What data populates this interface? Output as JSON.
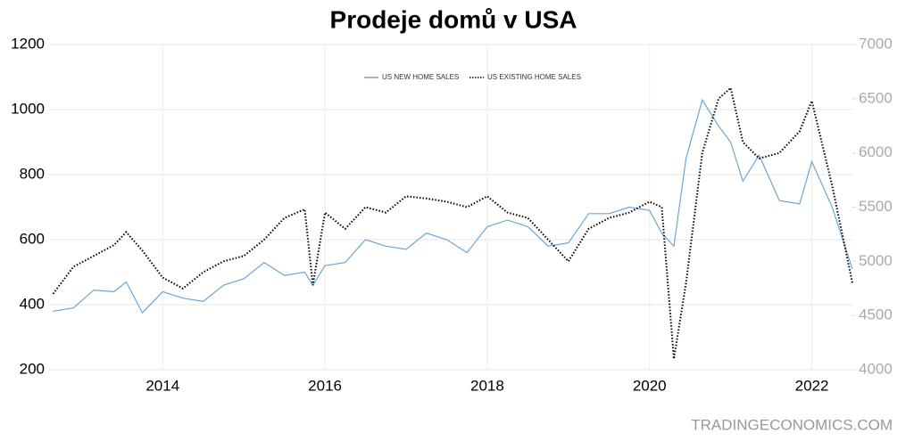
{
  "chart_data": {
    "type": "line",
    "title": "Prodeje domů v USA",
    "source": "TRADINGECONOMICS.COM",
    "x": [
      2012.65,
      2012.9,
      2013.15,
      2013.4,
      2013.55,
      2013.75,
      2014.0,
      2014.25,
      2014.5,
      2014.75,
      2015.0,
      2015.25,
      2015.5,
      2015.75,
      2015.85,
      2016.0,
      2016.25,
      2016.5,
      2016.75,
      2017.0,
      2017.25,
      2017.5,
      2017.75,
      2018.0,
      2018.25,
      2018.5,
      2018.75,
      2019.0,
      2019.25,
      2019.5,
      2019.75,
      2020.0,
      2020.15,
      2020.3,
      2020.45,
      2020.65,
      2020.85,
      2021.0,
      2021.15,
      2021.35,
      2021.6,
      2021.85,
      2022.0,
      2022.25,
      2022.5
    ],
    "series": [
      {
        "name": "US NEW HOME SALES",
        "color": "#6aa6d6",
        "axis": "y",
        "values": [
          380,
          390,
          445,
          440,
          470,
          375,
          440,
          420,
          410,
          460,
          480,
          530,
          490,
          500,
          460,
          520,
          530,
          600,
          580,
          570,
          620,
          600,
          560,
          640,
          660,
          640,
          580,
          590,
          680,
          680,
          700,
          690,
          620,
          580,
          850,
          1030,
          950,
          900,
          780,
          860,
          720,
          710,
          840,
          700,
          510
        ]
      },
      {
        "name": "US EXISTING HOME SALES",
        "color": "#000000",
        "axis": "y2",
        "values": [
          4700,
          4950,
          5050,
          5150,
          5270,
          5100,
          4850,
          4750,
          4900,
          5000,
          5050,
          5200,
          5400,
          5480,
          4780,
          5450,
          5300,
          5500,
          5450,
          5600,
          5580,
          5550,
          5500,
          5600,
          5450,
          5400,
          5200,
          5000,
          5300,
          5400,
          5450,
          5550,
          5500,
          4100,
          4800,
          6000,
          6500,
          6600,
          6100,
          5950,
          6000,
          6200,
          6480,
          5700,
          4800
        ]
      }
    ],
    "xlim": [
      2012.6,
      2022.5
    ],
    "xticks": [
      2014,
      2016,
      2018,
      2020,
      2022
    ],
    "ylim": [
      200,
      1200
    ],
    "yticks": [
      200,
      400,
      600,
      800,
      1000,
      1200
    ],
    "y2lim": [
      4000,
      7000
    ],
    "y2ticks": [
      4000,
      4500,
      5000,
      5500,
      6000,
      6500,
      7000
    ],
    "grid": true
  }
}
